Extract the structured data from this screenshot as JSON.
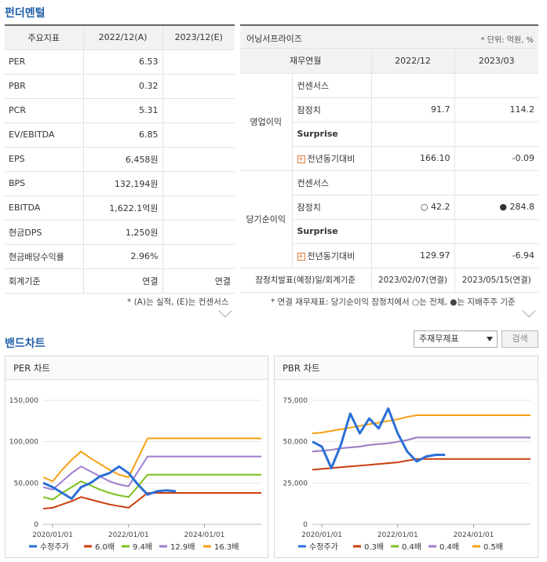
{
  "fundamental": {
    "title": "펀더멘털",
    "left": {
      "headers": [
        "주요지표",
        "2022/12(A)",
        "2023/12(E)"
      ],
      "rows": [
        {
          "label": "PER",
          "a": "6.53",
          "e": ""
        },
        {
          "label": "PBR",
          "a": "0.32",
          "e": ""
        },
        {
          "label": "PCR",
          "a": "5.31",
          "e": ""
        },
        {
          "label": "EV/EBITDA",
          "a": "6.85",
          "e": ""
        },
        {
          "label": "EPS",
          "a": "6,458원",
          "e": ""
        },
        {
          "label": "BPS",
          "a": "132,194원",
          "e": ""
        },
        {
          "label": "EBITDA",
          "a": "1,622.1억원",
          "e": ""
        },
        {
          "label": "현금DPS",
          "a": "1,250원",
          "e": ""
        },
        {
          "label": "현금배당수익률",
          "a": "2.96%",
          "e": ""
        },
        {
          "label": "회계기준",
          "a": "연결",
          "e": "연결"
        }
      ],
      "note": "* (A)는 실적, (E)는 컨센서스"
    },
    "right": {
      "company": "어닝서프라이즈",
      "unit": "* 단위: 억원, %",
      "headers": [
        "재무연월",
        "2022/12",
        "2023/03"
      ],
      "group1": "영업이익",
      "group2": "당기순이익",
      "op": [
        {
          "label": "컨센서스",
          "a": "",
          "b": ""
        },
        {
          "label": "잠정치",
          "a": "91.7",
          "b": "114.2"
        },
        {
          "label": "Surprise",
          "a": "",
          "b": ""
        },
        {
          "label": "전년동기대비",
          "a": "166.10",
          "b": "-0.09"
        }
      ],
      "net": [
        {
          "label": "컨센서스",
          "a": "",
          "b": ""
        },
        {
          "label": "잠정치",
          "a": "○ 42.2",
          "b": "● 284.8"
        },
        {
          "label": "Surprise",
          "a": "",
          "b": ""
        },
        {
          "label": "전년동기대비",
          "a": "129.97",
          "b": "-6.94"
        }
      ],
      "footer": {
        "label": "잠정치발표(예정)일/회계기준",
        "a": "2023/02/07(연결)",
        "b": "2023/05/15(연결)"
      },
      "note": "* 연결 재무제표: 당기순이익 잠정치에서 ○는 전체, ●는 지배주주 기준"
    }
  },
  "band": {
    "title": "밴드차트",
    "select_value": "주재무제표",
    "search_label": "검색"
  },
  "chart_data": [
    {
      "type": "line",
      "title": "PER 차트",
      "ylim": [
        0,
        150000
      ],
      "yticks": [
        "0",
        "50,000",
        "100,000",
        "150,000"
      ],
      "xticks": [
        "2020/01/01",
        "2022/01/01",
        "2024/01/01"
      ],
      "x": [
        2019.75,
        2020.0,
        2020.25,
        2020.5,
        2020.75,
        2021.0,
        2021.25,
        2021.5,
        2021.75,
        2022.0,
        2022.25,
        2022.5,
        2022.75,
        2023.0,
        2023.25,
        2023.5,
        2023.75,
        2024.0,
        2024.5,
        2025.0,
        2025.5
      ],
      "series": [
        {
          "name": "수정주가",
          "color": "#2b6fd6",
          "values": [
            50000,
            45000,
            38000,
            31000,
            45000,
            50000,
            58000,
            62000,
            70000,
            62000,
            48000,
            36000,
            40000,
            41000,
            40000,
            null,
            null,
            null,
            null,
            null,
            null
          ]
        },
        {
          "name": "6.0배",
          "color": "#cc3d0f",
          "values": [
            19000,
            20000,
            24000,
            28000,
            33000,
            30000,
            27000,
            24000,
            22000,
            20000,
            29000,
            38000,
            38000,
            38000,
            38000,
            38000,
            38000,
            38000,
            38000,
            38000,
            38000
          ]
        },
        {
          "name": "9.4배",
          "color": "#7cc01c",
          "values": [
            33000,
            30000,
            38000,
            45000,
            52000,
            47000,
            42000,
            38000,
            35000,
            33000,
            46000,
            60000,
            60000,
            60000,
            60000,
            60000,
            60000,
            60000,
            60000,
            60000,
            60000
          ]
        },
        {
          "name": "12.9배",
          "color": "#a07ed0",
          "values": [
            45000,
            42000,
            52000,
            62000,
            70000,
            64000,
            58000,
            52000,
            48000,
            46000,
            64000,
            82000,
            82000,
            82000,
            82000,
            82000,
            82000,
            82000,
            82000,
            82000,
            82000
          ]
        },
        {
          "name": "16.3배",
          "color": "#f5a015",
          "values": [
            57000,
            52000,
            66000,
            78000,
            88000,
            80000,
            73000,
            66000,
            60000,
            57000,
            80000,
            104000,
            104000,
            104000,
            104000,
            104000,
            104000,
            104000,
            104000,
            104000,
            104000
          ]
        }
      ]
    },
    {
      "type": "line",
      "title": "PBR 차트",
      "ylim": [
        0,
        75000
      ],
      "yticks": [
        "0",
        "25,000",
        "50,000",
        "75,000"
      ],
      "xticks": [
        "2020/01/01",
        "2022/01/01",
        "2024/01/01"
      ],
      "x": [
        2019.75,
        2020.0,
        2020.25,
        2020.5,
        2020.75,
        2021.0,
        2021.25,
        2021.5,
        2021.75,
        2022.0,
        2022.25,
        2022.5,
        2022.75,
        2023.0,
        2023.25,
        2023.5,
        2023.75,
        2024.0,
        2024.5,
        2025.0,
        2025.5
      ],
      "series": [
        {
          "name": "수정주가",
          "color": "#2b6fd6",
          "values": [
            50000,
            47000,
            34000,
            48000,
            67000,
            55000,
            64000,
            58000,
            70000,
            55000,
            44000,
            38000,
            41000,
            42000,
            42000,
            null,
            null,
            null,
            null,
            null,
            null
          ]
        },
        {
          "name": "0.3배",
          "color": "#cc3d0f",
          "values": [
            33000,
            33500,
            34000,
            34500,
            35000,
            35500,
            36000,
            36500,
            37000,
            37500,
            38500,
            39500,
            39500,
            39500,
            39500,
            39500,
            39500,
            39500,
            39500,
            39500,
            39500
          ]
        },
        {
          "name": "0.4배",
          "color": "#7cc01c",
          "values": [
            44000,
            44500,
            45000,
            46000,
            46500,
            47000,
            48000,
            48500,
            49000,
            50000,
            51000,
            52500,
            52500,
            52500,
            52500,
            52500,
            52500,
            52500,
            52500,
            52500,
            52500
          ]
        },
        {
          "name": "0.4배",
          "color": "#a07ed0",
          "values": [
            44000,
            44500,
            45000,
            46000,
            46500,
            47000,
            48000,
            48500,
            49000,
            50000,
            51000,
            52500,
            52500,
            52500,
            52500,
            52500,
            52500,
            52500,
            52500,
            52500,
            52500
          ]
        },
        {
          "name": "0.5배",
          "color": "#f5a015",
          "values": [
            55000,
            55500,
            56500,
            57500,
            58500,
            59500,
            60500,
            61500,
            62500,
            63500,
            65000,
            66000,
            66000,
            66000,
            66000,
            66000,
            66000,
            66000,
            66000,
            66000,
            66000
          ]
        }
      ]
    }
  ]
}
